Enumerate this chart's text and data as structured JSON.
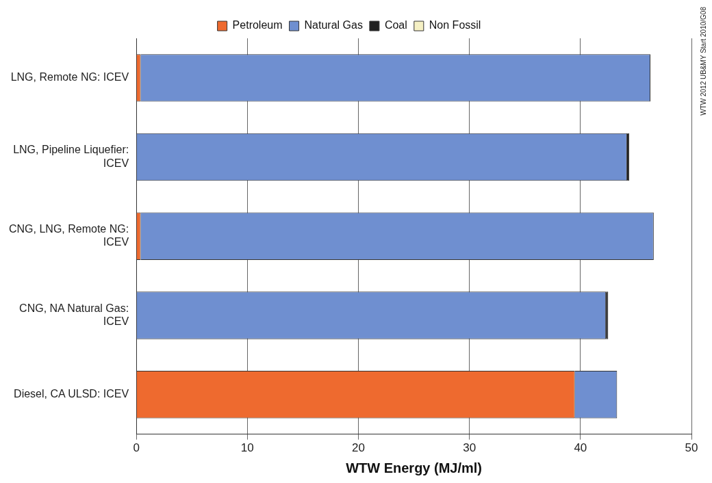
{
  "chart_data": {
    "type": "bar",
    "orientation": "horizontal",
    "stacked": true,
    "xlabel": "WTW Energy (MJ/ml)",
    "categories": [
      "LNG, Remote NG: ICEV",
      "LNG, Pipeline Liquefier: ICEV",
      "CNG, LNG, Remote NG: ICEV",
      "CNG, NA Natural Gas: ICEV",
      "Diesel, CA ULSD: ICEV"
    ],
    "series": [
      {
        "name": "Petroleum",
        "color": "#ee6a2f",
        "values": [
          0.4,
          null,
          0.4,
          null,
          39.5
        ]
      },
      {
        "name": "Natural Gas",
        "color": "#6f8fd0",
        "values": [
          45.9,
          44.2,
          46.2,
          42.3,
          3.8
        ]
      },
      {
        "name": "Coal",
        "color": "#222222",
        "values": [
          null,
          0.2,
          null,
          0.2,
          null
        ]
      },
      {
        "name": "Non Fossil",
        "color": "#f5f0c4",
        "values": [
          null,
          null,
          null,
          null,
          null
        ]
      }
    ],
    "xlim": [
      0,
      50
    ],
    "xticks": [
      0,
      10,
      20,
      30,
      40,
      50
    ],
    "grid": "x",
    "legend": "top",
    "annotations": [
      "WTW 2012 UB&MY Start 2010/G08"
    ]
  }
}
